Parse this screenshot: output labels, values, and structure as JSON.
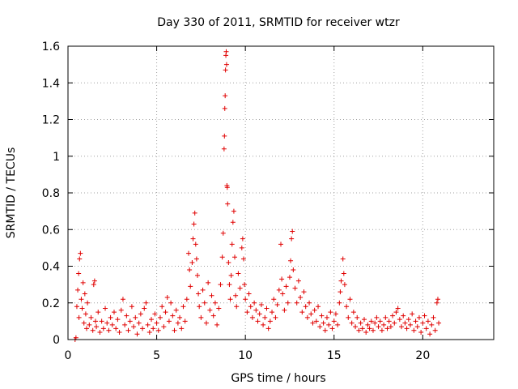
{
  "chart_data": {
    "type": "scatter",
    "title": "Day 330 of 2011, SRMTID for receiver wtzr",
    "xlabel": "GPS time / hours",
    "ylabel": "SRMTID / TECUs",
    "xlim": [
      0,
      24
    ],
    "ylim": [
      0,
      1.6
    ],
    "x_ticks": [
      0,
      5,
      10,
      15,
      20
    ],
    "x_tick_labels": [
      "0",
      "5",
      "10",
      "15",
      "20"
    ],
    "y_ticks": [
      0,
      0.2,
      0.4,
      0.6,
      0.8,
      1,
      1.2,
      1.4,
      1.6
    ],
    "y_tick_labels": [
      "0",
      "0.2",
      "0.4",
      "0.6",
      "0.8",
      "1",
      "1.2",
      "1.4",
      "1.6"
    ],
    "grid": true,
    "marker": "+",
    "series": [
      {
        "name": "SRMTID",
        "color": "#e00000",
        "points": [
          [
            0.4,
            0.0
          ],
          [
            0.45,
            0.01
          ],
          [
            0.5,
            0.18
          ],
          [
            0.55,
            0.27
          ],
          [
            0.6,
            0.36
          ],
          [
            0.62,
            0.12
          ],
          [
            0.65,
            0.44
          ],
          [
            0.7,
            0.47
          ],
          [
            0.75,
            0.22
          ],
          [
            0.8,
            0.17
          ],
          [
            0.85,
            0.31
          ],
          [
            0.9,
            0.09
          ],
          [
            0.95,
            0.25
          ],
          [
            1.0,
            0.14
          ],
          [
            1.05,
            0.06
          ],
          [
            1.1,
            0.2
          ],
          [
            1.2,
            0.08
          ],
          [
            1.3,
            0.12
          ],
          [
            1.4,
            0.05
          ],
          [
            1.45,
            0.3
          ],
          [
            1.5,
            0.32
          ],
          [
            1.55,
            0.1
          ],
          [
            1.6,
            0.07
          ],
          [
            1.7,
            0.15
          ],
          [
            1.8,
            0.04
          ],
          [
            1.9,
            0.1
          ],
          [
            2.0,
            0.06
          ],
          [
            2.1,
            0.17
          ],
          [
            2.2,
            0.09
          ],
          [
            2.3,
            0.05
          ],
          [
            2.4,
            0.12
          ],
          [
            2.5,
            0.08
          ],
          [
            2.6,
            0.15
          ],
          [
            2.7,
            0.06
          ],
          [
            2.8,
            0.11
          ],
          [
            2.9,
            0.04
          ],
          [
            3.0,
            0.16
          ],
          [
            3.1,
            0.22
          ],
          [
            3.2,
            0.08
          ],
          [
            3.3,
            0.13
          ],
          [
            3.4,
            0.05
          ],
          [
            3.5,
            0.1
          ],
          [
            3.6,
            0.18
          ],
          [
            3.7,
            0.07
          ],
          [
            3.8,
            0.12
          ],
          [
            3.9,
            0.03
          ],
          [
            4.0,
            0.09
          ],
          [
            4.1,
            0.14
          ],
          [
            4.2,
            0.06
          ],
          [
            4.3,
            0.17
          ],
          [
            4.4,
            0.2
          ],
          [
            4.5,
            0.08
          ],
          [
            4.6,
            0.04
          ],
          [
            4.7,
            0.11
          ],
          [
            4.8,
            0.06
          ],
          [
            4.9,
            0.14
          ],
          [
            5.0,
            0.09
          ],
          [
            5.1,
            0.05
          ],
          [
            5.2,
            0.12
          ],
          [
            5.3,
            0.18
          ],
          [
            5.4,
            0.07
          ],
          [
            5.5,
            0.15
          ],
          [
            5.6,
            0.23
          ],
          [
            5.7,
            0.1
          ],
          [
            5.8,
            0.2
          ],
          [
            5.9,
            0.13
          ],
          [
            6.0,
            0.05
          ],
          [
            6.1,
            0.16
          ],
          [
            6.2,
            0.09
          ],
          [
            6.3,
            0.12
          ],
          [
            6.4,
            0.06
          ],
          [
            6.5,
            0.18
          ],
          [
            6.6,
            0.1
          ],
          [
            6.7,
            0.22
          ],
          [
            6.8,
            0.47
          ],
          [
            6.85,
            0.38
          ],
          [
            6.9,
            0.29
          ],
          [
            7.0,
            0.42
          ],
          [
            7.05,
            0.55
          ],
          [
            7.1,
            0.63
          ],
          [
            7.15,
            0.69
          ],
          [
            7.2,
            0.52
          ],
          [
            7.25,
            0.44
          ],
          [
            7.3,
            0.35
          ],
          [
            7.35,
            0.25
          ],
          [
            7.4,
            0.18
          ],
          [
            7.5,
            0.12
          ],
          [
            7.6,
            0.27
          ],
          [
            7.7,
            0.2
          ],
          [
            7.8,
            0.09
          ],
          [
            7.9,
            0.31
          ],
          [
            8.0,
            0.16
          ],
          [
            8.1,
            0.24
          ],
          [
            8.2,
            0.13
          ],
          [
            8.3,
            0.2
          ],
          [
            8.4,
            0.08
          ],
          [
            8.5,
            0.17
          ],
          [
            8.6,
            0.3
          ],
          [
            8.7,
            0.45
          ],
          [
            8.75,
            0.58
          ],
          [
            8.8,
            1.04
          ],
          [
            8.82,
            1.11
          ],
          [
            8.84,
            1.26
          ],
          [
            8.86,
            1.33
          ],
          [
            8.88,
            1.47
          ],
          [
            8.9,
            1.55
          ],
          [
            8.92,
            1.57
          ],
          [
            8.94,
            1.5
          ],
          [
            8.96,
            0.84
          ],
          [
            8.98,
            0.83
          ],
          [
            9.0,
            0.74
          ],
          [
            9.05,
            0.42
          ],
          [
            9.1,
            0.3
          ],
          [
            9.15,
            0.22
          ],
          [
            9.2,
            0.35
          ],
          [
            9.25,
            0.52
          ],
          [
            9.3,
            0.64
          ],
          [
            9.35,
            0.7
          ],
          [
            9.4,
            0.45
          ],
          [
            9.45,
            0.24
          ],
          [
            9.5,
            0.18
          ],
          [
            9.6,
            0.36
          ],
          [
            9.7,
            0.28
          ],
          [
            9.8,
            0.5
          ],
          [
            9.85,
            0.55
          ],
          [
            9.9,
            0.44
          ],
          [
            9.95,
            0.3
          ],
          [
            10.0,
            0.22
          ],
          [
            10.1,
            0.15
          ],
          [
            10.2,
            0.25
          ],
          [
            10.3,
            0.18
          ],
          [
            10.4,
            0.12
          ],
          [
            10.5,
            0.2
          ],
          [
            10.6,
            0.16
          ],
          [
            10.7,
            0.1
          ],
          [
            10.8,
            0.14
          ],
          [
            10.9,
            0.19
          ],
          [
            11.0,
            0.08
          ],
          [
            11.1,
            0.12
          ],
          [
            11.2,
            0.17
          ],
          [
            11.3,
            0.06
          ],
          [
            11.4,
            0.1
          ],
          [
            11.5,
            0.15
          ],
          [
            11.6,
            0.22
          ],
          [
            11.7,
            0.12
          ],
          [
            11.8,
            0.19
          ],
          [
            11.9,
            0.27
          ],
          [
            12.0,
            0.52
          ],
          [
            12.05,
            0.33
          ],
          [
            12.1,
            0.25
          ],
          [
            12.2,
            0.16
          ],
          [
            12.3,
            0.29
          ],
          [
            12.4,
            0.2
          ],
          [
            12.5,
            0.34
          ],
          [
            12.55,
            0.43
          ],
          [
            12.6,
            0.55
          ],
          [
            12.65,
            0.59
          ],
          [
            12.7,
            0.38
          ],
          [
            12.8,
            0.28
          ],
          [
            12.9,
            0.2
          ],
          [
            13.0,
            0.32
          ],
          [
            13.1,
            0.23
          ],
          [
            13.2,
            0.15
          ],
          [
            13.3,
            0.26
          ],
          [
            13.4,
            0.18
          ],
          [
            13.5,
            0.12
          ],
          [
            13.6,
            0.2
          ],
          [
            13.7,
            0.14
          ],
          [
            13.8,
            0.09
          ],
          [
            13.9,
            0.16
          ],
          [
            14.0,
            0.1
          ],
          [
            14.1,
            0.18
          ],
          [
            14.2,
            0.07
          ],
          [
            14.3,
            0.13
          ],
          [
            14.4,
            0.09
          ],
          [
            14.5,
            0.05
          ],
          [
            14.6,
            0.12
          ],
          [
            14.7,
            0.08
          ],
          [
            14.8,
            0.15
          ],
          [
            14.9,
            0.06
          ],
          [
            15.0,
            0.1
          ],
          [
            15.1,
            0.14
          ],
          [
            15.2,
            0.08
          ],
          [
            15.3,
            0.2
          ],
          [
            15.35,
            0.26
          ],
          [
            15.4,
            0.32
          ],
          [
            15.5,
            0.44
          ],
          [
            15.55,
            0.36
          ],
          [
            15.6,
            0.3
          ],
          [
            15.7,
            0.18
          ],
          [
            15.8,
            0.12
          ],
          [
            15.9,
            0.22
          ],
          [
            16.0,
            0.09
          ],
          [
            16.1,
            0.15
          ],
          [
            16.2,
            0.07
          ],
          [
            16.3,
            0.12
          ],
          [
            16.4,
            0.05
          ],
          [
            16.5,
            0.09
          ],
          [
            16.6,
            0.06
          ],
          [
            16.7,
            0.11
          ],
          [
            16.8,
            0.04
          ],
          [
            16.9,
            0.08
          ],
          [
            17.0,
            0.06
          ],
          [
            17.1,
            0.1
          ],
          [
            17.2,
            0.05
          ],
          [
            17.3,
            0.09
          ],
          [
            17.4,
            0.12
          ],
          [
            17.5,
            0.07
          ],
          [
            17.6,
            0.1
          ],
          [
            17.7,
            0.05
          ],
          [
            17.8,
            0.08
          ],
          [
            17.9,
            0.12
          ],
          [
            18.0,
            0.06
          ],
          [
            18.1,
            0.1
          ],
          [
            18.2,
            0.07
          ],
          [
            18.3,
            0.13
          ],
          [
            18.4,
            0.09
          ],
          [
            18.5,
            0.15
          ],
          [
            18.6,
            0.17
          ],
          [
            18.7,
            0.11
          ],
          [
            18.8,
            0.07
          ],
          [
            18.9,
            0.13
          ],
          [
            19.0,
            0.09
          ],
          [
            19.1,
            0.06
          ],
          [
            19.2,
            0.11
          ],
          [
            19.3,
            0.08
          ],
          [
            19.4,
            0.14
          ],
          [
            19.5,
            0.05
          ],
          [
            19.6,
            0.1
          ],
          [
            19.7,
            0.07
          ],
          [
            19.8,
            0.12
          ],
          [
            19.9,
            0.04
          ],
          [
            20.0,
            0.09
          ],
          [
            20.1,
            0.13
          ],
          [
            20.2,
            0.06
          ],
          [
            20.3,
            0.1
          ],
          [
            20.4,
            0.03
          ],
          [
            20.5,
            0.08
          ],
          [
            20.6,
            0.12
          ],
          [
            20.7,
            0.05
          ],
          [
            20.8,
            0.2
          ],
          [
            20.85,
            0.22
          ],
          [
            20.9,
            0.09
          ]
        ]
      }
    ]
  }
}
